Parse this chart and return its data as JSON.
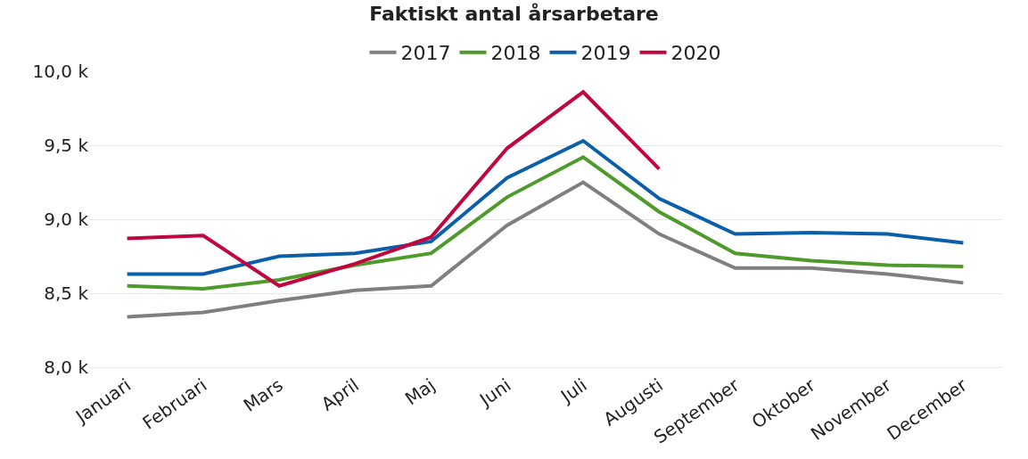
{
  "chart_data": {
    "type": "line",
    "title": "Faktiskt antal årsarbetare",
    "categories": [
      "Januari",
      "Februari",
      "Mars",
      "April",
      "Maj",
      "Juni",
      "Juli",
      "Augusti",
      "September",
      "Oktober",
      "November",
      "December"
    ],
    "series": [
      {
        "name": "2017",
        "color": "#7f7f7f",
        "values": [
          8340,
          8370,
          8450,
          8520,
          8550,
          8960,
          9250,
          8900,
          8670,
          8670,
          8630,
          8570
        ]
      },
      {
        "name": "2018",
        "color": "#4e9a2a",
        "values": [
          8550,
          8530,
          8590,
          8690,
          8770,
          9150,
          9420,
          9050,
          8770,
          8720,
          8690,
          8680
        ]
      },
      {
        "name": "2019",
        "color": "#0a5fa8",
        "values": [
          8630,
          8630,
          8750,
          8770,
          8850,
          9280,
          9530,
          9140,
          8900,
          8910,
          8900,
          8840
        ]
      },
      {
        "name": "2020",
        "color": "#c0063f",
        "values": [
          8870,
          8890,
          8550,
          8700,
          8880,
          9480,
          9860,
          9340,
          null,
          null,
          null,
          null
        ]
      }
    ],
    "ylim": [
      8000,
      10000
    ],
    "yticks": [
      {
        "value": 8000,
        "label": "8,0 k"
      },
      {
        "value": 8500,
        "label": "8,5 k"
      },
      {
        "value": 9000,
        "label": "9,0 k"
      },
      {
        "value": 9500,
        "label": "9,5 k"
      },
      {
        "value": 10000,
        "label": "10,0 k"
      }
    ],
    "grid": "y",
    "legend": "top",
    "marker": "none",
    "line_style": "solid"
  }
}
